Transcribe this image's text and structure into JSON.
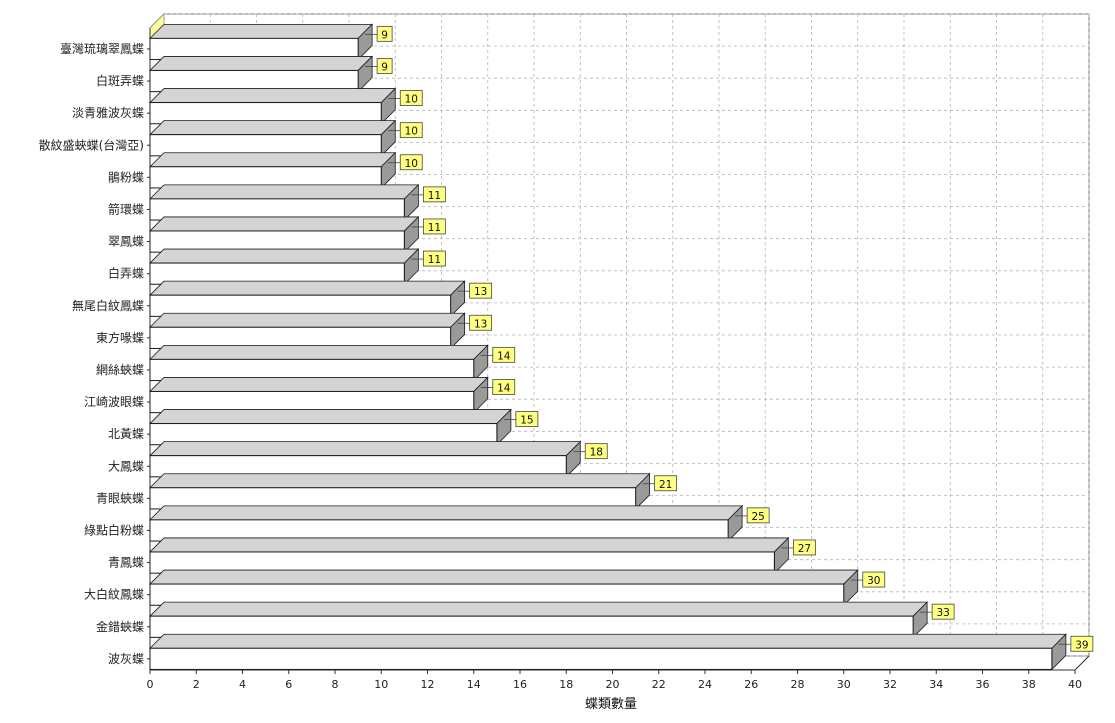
{
  "chart_data": {
    "type": "bar",
    "orientation": "horizontal",
    "style": "3d",
    "title": "",
    "xlabel": "蝶類數量",
    "ylabel": "",
    "xlim": [
      0,
      40
    ],
    "xticks": [
      0,
      2,
      4,
      6,
      8,
      10,
      12,
      14,
      16,
      18,
      20,
      22,
      24,
      26,
      28,
      30,
      32,
      34,
      36,
      38,
      40
    ],
    "grid": true,
    "legend": "none",
    "categories": [
      "臺灣琉璃翠鳳蝶",
      "白斑弄蝶",
      "淡青雅波灰蝶",
      "散紋盛蛺蝶(台灣亞)",
      "鵑粉蝶",
      "箭環蝶",
      "翠鳳蝶",
      "白弄蝶",
      "無尾白紋鳳蝶",
      "東方喙蝶",
      "網絲蛺蝶",
      "江崎波眼蝶",
      "北黃蝶",
      "大鳳蝶",
      "青眼蛺蝶",
      "綠點白粉蝶",
      "青鳳蝶",
      "大白紋鳳蝶",
      "金錯蛺蝶",
      "波灰蝶"
    ],
    "values": [
      9,
      9,
      10,
      10,
      10,
      11,
      11,
      11,
      13,
      13,
      14,
      14,
      15,
      18,
      21,
      25,
      27,
      30,
      33,
      39
    ],
    "colors": {
      "bar_front": "#ffffff",
      "bar_top": "#d4d4d4",
      "bar_side": "#9a9a9a",
      "bar_edge": "#1a1a1a",
      "value_label_bg": "#ffff80",
      "grid": "#b4b4b4",
      "floor": "#ffff99"
    }
  }
}
